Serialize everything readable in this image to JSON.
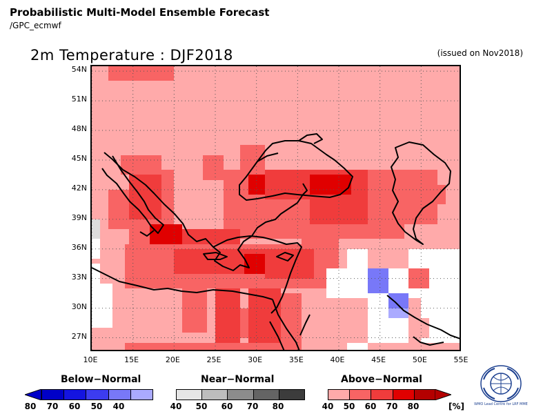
{
  "header": {
    "title": "Probabilistic Multi-Model Ensemble Forecast",
    "subtitle": "/GPC_ecmwf",
    "map_title": "2m Temperature : DJF2018",
    "issued": "(issued on Nov2018)"
  },
  "axes": {
    "lat_labels": [
      "54N",
      "51N",
      "48N",
      "45N",
      "42N",
      "39N",
      "36N",
      "33N",
      "30N",
      "27N"
    ],
    "lon_labels": [
      "10E",
      "15E",
      "20E",
      "25E",
      "30E",
      "35E",
      "40E",
      "45E",
      "50E",
      "55E"
    ]
  },
  "legend": {
    "below": {
      "label": "Below−Normal",
      "ticks": [
        "80",
        "70",
        "60",
        "50",
        "40"
      ],
      "colors": [
        "#0000c8",
        "#1414e0",
        "#3c3cf0",
        "#7878f8",
        "#aaaaff"
      ]
    },
    "near": {
      "label": "Near−Normal",
      "ticks": [
        "40",
        "50",
        "60",
        "70",
        "80"
      ],
      "colors": [
        "#e6e6e6",
        "#bdbdbd",
        "#8c8c8c",
        "#646464",
        "#3c3c3c"
      ]
    },
    "above": {
      "label": "Above−Normal",
      "ticks": [
        "40",
        "50",
        "60",
        "70",
        "80"
      ],
      "unit": "[%]",
      "colors": [
        "#ffaaaa",
        "#f86464",
        "#f03c3c",
        "#e00000",
        "#b40000"
      ]
    }
  },
  "logo_caption": "WMO Lead Centre for LRF MME",
  "colors": {
    "a40": "#ffaaaa",
    "a50": "#f86464",
    "a60": "#f03c3c",
    "a70": "#e00000",
    "a80": "#b40000",
    "b40": "#aaaaff",
    "b50": "#7878f8",
    "n40": "#dcdcdc",
    "white": "#ffffff"
  },
  "chart_data": {
    "type": "heatmap",
    "x_range": [
      10,
      55
    ],
    "y_range": [
      25.5,
      54.5
    ],
    "cell_size_deg": 2.5,
    "grid": true,
    "default_category": "a40",
    "regions": [
      {
        "cat": "a50",
        "lon": [
          13.5,
          18.5
        ],
        "lat": [
          43.5,
          45.5
        ]
      },
      {
        "cat": "a50",
        "lon": [
          14.5,
          20
        ],
        "lat": [
          36,
          44
        ]
      },
      {
        "cat": "a50",
        "lon": [
          12,
          15
        ],
        "lat": [
          38,
          42
        ]
      },
      {
        "cat": "a60",
        "lon": [
          14.5,
          18.5
        ],
        "lat": [
          39,
          43.5
        ]
      },
      {
        "cat": "a50",
        "lon": [
          23.5,
          26
        ],
        "lat": [
          43,
          45.5
        ]
      },
      {
        "cat": "a50",
        "lon": [
          28,
          31
        ],
        "lat": [
          44,
          46.5
        ]
      },
      {
        "cat": "a50",
        "lon": [
          26,
          48
        ],
        "lat": [
          37,
          44
        ]
      },
      {
        "cat": "a50",
        "lon": [
          47,
          52
        ],
        "lat": [
          38.5,
          44
        ]
      },
      {
        "cat": "a50",
        "lon": [
          50,
          53
        ],
        "lat": [
          40.5,
          42.5
        ]
      },
      {
        "cat": "a60",
        "lon": [
          31,
          43.5
        ],
        "lat": [
          41,
          44
        ]
      },
      {
        "cat": "a60",
        "lon": [
          36.5,
          43.5
        ],
        "lat": [
          38.5,
          41
        ]
      },
      {
        "cat": "a70",
        "lon": [
          29,
          31
        ],
        "lat": [
          41.5,
          43.5
        ]
      },
      {
        "cat": "a70",
        "lon": [
          36.5,
          41.5
        ],
        "lat": [
          41.5,
          43.5
        ]
      },
      {
        "cat": "a70",
        "lon": [
          17,
          21
        ],
        "lat": [
          35.5,
          38.5
        ]
      },
      {
        "cat": "a60",
        "lon": [
          21,
          28
        ],
        "lat": [
          36.5,
          38
        ]
      },
      {
        "cat": "a50",
        "lon": [
          14,
          40
        ],
        "lat": [
          32,
          36.5
        ]
      },
      {
        "cat": "a60",
        "lon": [
          20,
          31
        ],
        "lat": [
          33.5,
          36
        ]
      },
      {
        "cat": "a70",
        "lon": [
          28.5,
          31
        ],
        "lat": [
          33.5,
          35.5
        ]
      },
      {
        "cat": "a60",
        "lon": [
          31,
          37
        ],
        "lat": [
          33,
          36
        ]
      },
      {
        "cat": "a50",
        "lon": [
          21,
          24
        ],
        "lat": [
          27.5,
          32
        ]
      },
      {
        "cat": "a60",
        "lon": [
          25,
          28
        ],
        "lat": [
          26,
          32
        ]
      },
      {
        "cat": "a60",
        "lon": [
          29,
          33
        ],
        "lat": [
          25.5,
          32
        ]
      },
      {
        "cat": "a50",
        "lon": [
          28,
          29
        ],
        "lat": [
          27,
          30
        ]
      },
      {
        "cat": "a50",
        "lon": [
          33,
          35.5
        ],
        "lat": [
          25.5,
          31.5
        ]
      },
      {
        "cat": "a50",
        "lon": [
          14,
          34
        ],
        "lat": [
          25.5,
          26.5
        ]
      },
      {
        "cat": "a50",
        "lon": [
          35.5,
          40
        ],
        "lat": [
          36,
          38
        ]
      },
      {
        "cat": "a50",
        "lon": [
          51,
          53.5
        ],
        "lat": [
          32.5,
          34.5
        ]
      },
      {
        "cat": "white",
        "lon": [
          10,
          12.5
        ],
        "lat": [
          28,
          32.5
        ]
      },
      {
        "cat": "white",
        "lon": [
          10,
          11
        ],
        "lat": [
          32.5,
          34.5
        ]
      },
      {
        "cat": "n40",
        "lon": [
          10,
          11
        ],
        "lat": [
          37,
          39
        ]
      },
      {
        "cat": "white",
        "lon": [
          10,
          11
        ],
        "lat": [
          35,
          37
        ]
      },
      {
        "cat": "white",
        "lon": [
          38.5,
          43.5
        ],
        "lat": [
          31,
          34
        ]
      },
      {
        "cat": "white",
        "lon": [
          41,
          43.5
        ],
        "lat": [
          34,
          36
        ]
      },
      {
        "cat": "white",
        "lon": [
          43.5,
          48.5
        ],
        "lat": [
          26.5,
          34
        ]
      },
      {
        "cat": "white",
        "lon": [
          48.5,
          55
        ],
        "lat": [
          31,
          36
        ]
      },
      {
        "cat": "white",
        "lon": [
          50,
          55
        ],
        "lat": [
          26.5,
          31
        ]
      },
      {
        "cat": "white",
        "lon": [
          41,
          43.5
        ],
        "lat": [
          25.5,
          26.5
        ]
      },
      {
        "cat": "a50",
        "lon": [
          48.5,
          51
        ],
        "lat": [
          32,
          34
        ]
      },
      {
        "cat": "a40",
        "lon": [
          48.5,
          51
        ],
        "lat": [
          27,
          29
        ]
      },
      {
        "cat": "b50",
        "lon": [
          43.5,
          46
        ],
        "lat": [
          31.5,
          34
        ]
      },
      {
        "cat": "b50",
        "lon": [
          46,
          48.5
        ],
        "lat": [
          29,
          31.5
        ]
      },
      {
        "cat": "b40",
        "lon": [
          46,
          48.5
        ],
        "lat": [
          29,
          30
        ]
      },
      {
        "cat": "a50",
        "lon": [
          12,
          20
        ],
        "lat": [
          53,
          54.5
        ]
      }
    ]
  }
}
